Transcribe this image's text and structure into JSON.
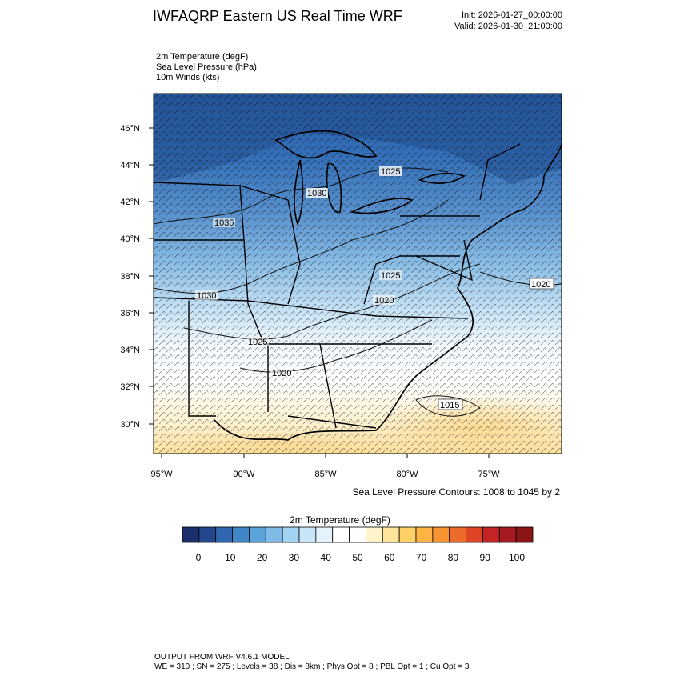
{
  "header": {
    "title": "IWFAQRP Eastern US Real Time WRF",
    "init": "Init: 2026-01-27_00:00:00",
    "valid": "Valid: 2026-01-30_21:00:00"
  },
  "fields": [
    "2m Temperature   (degF)",
    "Sea Level Pressure   (hPa)",
    "10m Winds   (kts)"
  ],
  "axes": {
    "lat_labels": [
      "46°N",
      "44°N",
      "42°N",
      "40°N",
      "38°N",
      "36°N",
      "34°N",
      "32°N",
      "30°N"
    ],
    "lon_labels": [
      "95°W",
      "90°W",
      "85°W",
      "80°W",
      "75°W"
    ]
  },
  "isobar_labels": [
    "1025",
    "1030",
    "1035",
    "1030",
    "1025",
    "1020",
    "1025",
    "1020",
    "1020",
    "1015"
  ],
  "contour_note": "Sea Level Pressure Contours: 1008 to 1045 by 2",
  "colorbar": {
    "title": "2m Temperature  (degF)",
    "labels": [
      "0",
      "10",
      "20",
      "30",
      "40",
      "50",
      "60",
      "70",
      "80",
      "90",
      "100"
    ],
    "colors": [
      "#1b2f6b",
      "#24468e",
      "#2f67b1",
      "#3f86c6",
      "#5ba3d8",
      "#7fbbe6",
      "#a3d3f2",
      "#c6e5f7",
      "#e3f2fb",
      "#ffffff",
      "#ffffff",
      "#fff4cc",
      "#ffe59a",
      "#ffd066",
      "#fdb443",
      "#f89432",
      "#ec6a2a",
      "#dd4526",
      "#c52425",
      "#a51a21",
      "#8a1516"
    ]
  },
  "footer": {
    "line1": "OUTPUT FROM WRF V4.6.1 MODEL",
    "line2": "WE = 310 ; SN = 275 ; Levels = 38 ; Dis = 8km ; Phys Opt = 8 ; PBL Opt = 1 ; Cu Opt = 3"
  }
}
